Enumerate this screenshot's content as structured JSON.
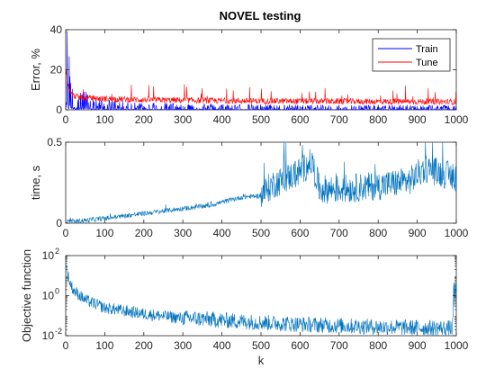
{
  "figure": {
    "title": "NOVEL testing"
  },
  "chart_data": [
    {
      "type": "line",
      "title": "NOVEL testing",
      "xlabel": "",
      "ylabel": "Error, %",
      "xlim": [
        0,
        1000
      ],
      "ylim": [
        0,
        40
      ],
      "xticks": [
        0,
        100,
        200,
        300,
        400,
        500,
        600,
        700,
        800,
        900,
        1000
      ],
      "yticks": [
        0,
        20,
        40
      ],
      "legend": {
        "location": "top-right",
        "entries": [
          "Train",
          "Tune"
        ]
      },
      "series": [
        {
          "name": "Train",
          "color": "#0000ff",
          "x": [
            1,
            10,
            20,
            40,
            60,
            100,
            200,
            400,
            700,
            1000
          ],
          "values": [
            10,
            6,
            4,
            2.5,
            1.5,
            1,
            0.8,
            0.6,
            0.5,
            0.5
          ]
        },
        {
          "name": "Tune",
          "color": "#ff0000",
          "x": [
            1,
            5,
            10,
            20,
            40,
            100,
            200,
            400,
            700,
            1000
          ],
          "values": [
            20,
            14,
            9,
            7,
            6,
            5.5,
            5,
            4.5,
            4.2,
            4
          ]
        }
      ]
    },
    {
      "type": "line",
      "xlabel": "",
      "ylabel": "time, s",
      "xlim": [
        0,
        1000
      ],
      "ylim": [
        0,
        0.5
      ],
      "xticks": [
        0,
        100,
        200,
        300,
        400,
        500,
        600,
        700,
        800,
        900,
        1000
      ],
      "yticks": [
        0,
        0.5
      ],
      "series": [
        {
          "color": "#0072bd",
          "x": [
            1,
            100,
            200,
            300,
            370,
            400,
            450,
            500,
            530,
            560,
            600,
            630,
            650,
            700,
            800,
            880,
            920,
            960,
            1000
          ],
          "values": [
            0.005,
            0.03,
            0.06,
            0.09,
            0.11,
            0.13,
            0.16,
            0.17,
            0.24,
            0.27,
            0.32,
            0.38,
            0.21,
            0.21,
            0.23,
            0.26,
            0.34,
            0.31,
            0.28
          ]
        }
      ]
    },
    {
      "type": "line",
      "xlabel": "k",
      "ylabel": "Objective function",
      "xlim": [
        0,
        1000
      ],
      "ylim": [
        0.01,
        100
      ],
      "yscale": "log",
      "xticks": [
        0,
        100,
        200,
        300,
        400,
        500,
        600,
        700,
        800,
        900,
        1000
      ],
      "yticks": [
        0.01,
        1,
        100
      ],
      "ytick_labels": [
        "10",
        "10",
        "10"
      ],
      "ytick_exponents": [
        "-2",
        "0",
        "2"
      ],
      "series": [
        {
          "color": "#0072bd",
          "x": [
            1,
            5,
            10,
            20,
            50,
            100,
            200,
            300,
            400,
            500,
            600,
            700,
            800,
            900,
            990,
            1000
          ],
          "values": [
            30,
            10,
            4,
            1.5,
            0.5,
            0.2,
            0.1,
            0.06,
            0.045,
            0.035,
            0.028,
            0.024,
            0.021,
            0.019,
            0.018,
            1
          ]
        }
      ]
    }
  ]
}
